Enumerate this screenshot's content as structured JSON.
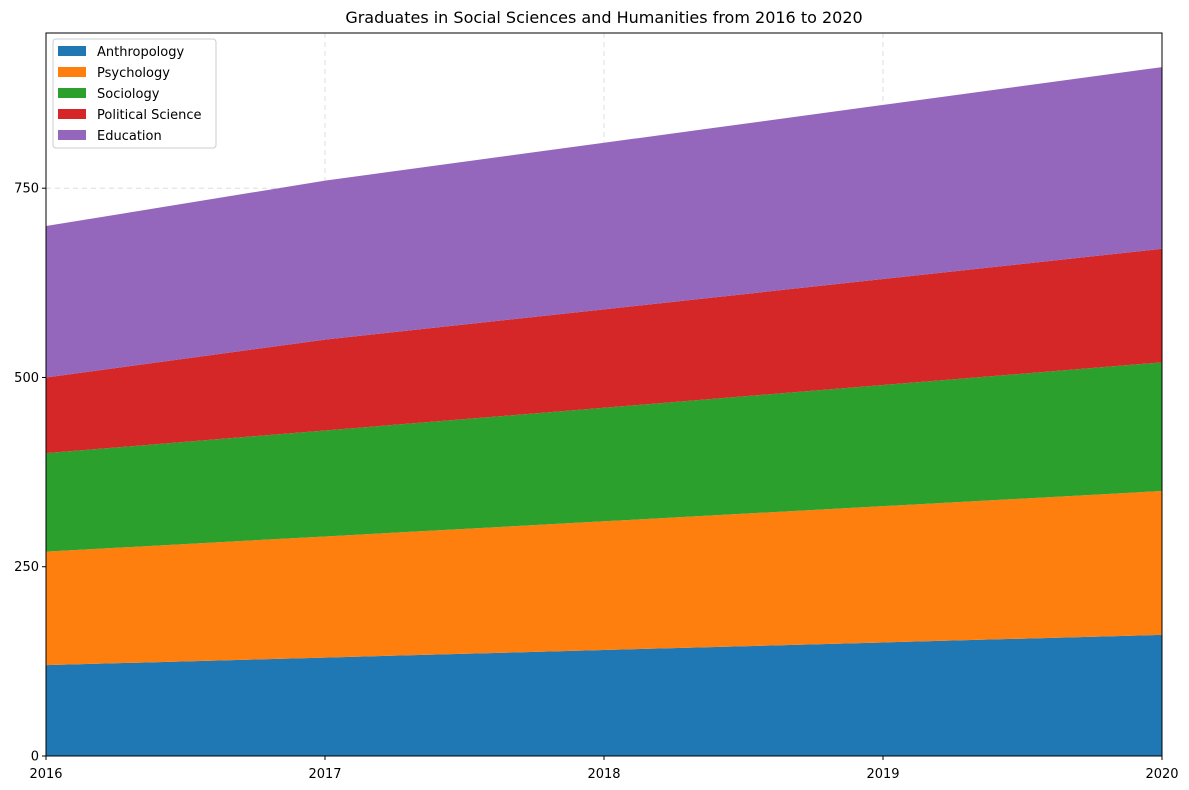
{
  "chart_data": {
    "type": "area",
    "stacked": true,
    "title": "Graduates in Social Sciences and Humanities from 2016 to 2020",
    "xlabel": "",
    "ylabel": "",
    "x": [
      2016,
      2017,
      2018,
      2019,
      2020
    ],
    "x_tick_labels": [
      "2016",
      "2017",
      "2018",
      "2019",
      "2020"
    ],
    "y_ticks": [
      0,
      250,
      500,
      750
    ],
    "y_tick_labels": [
      "0",
      "250",
      "500",
      "750"
    ],
    "xlim": [
      2016,
      2020
    ],
    "ylim": [
      0,
      955
    ],
    "grid": true,
    "legend_position": "upper-left",
    "series": [
      {
        "name": "Anthropology",
        "color": "#1f77b4",
        "values": [
          120,
          130,
          140,
          150,
          160
        ]
      },
      {
        "name": "Psychology",
        "color": "#ff7f0e",
        "values": [
          150,
          160,
          170,
          180,
          190
        ]
      },
      {
        "name": "Sociology",
        "color": "#2ca02c",
        "values": [
          130,
          140,
          150,
          160,
          170
        ]
      },
      {
        "name": "Political Science",
        "color": "#d62728",
        "values": [
          100,
          120,
          130,
          140,
          150
        ]
      },
      {
        "name": "Education",
        "color": "#9467bd",
        "values": [
          200,
          210,
          220,
          230,
          240
        ]
      }
    ]
  }
}
